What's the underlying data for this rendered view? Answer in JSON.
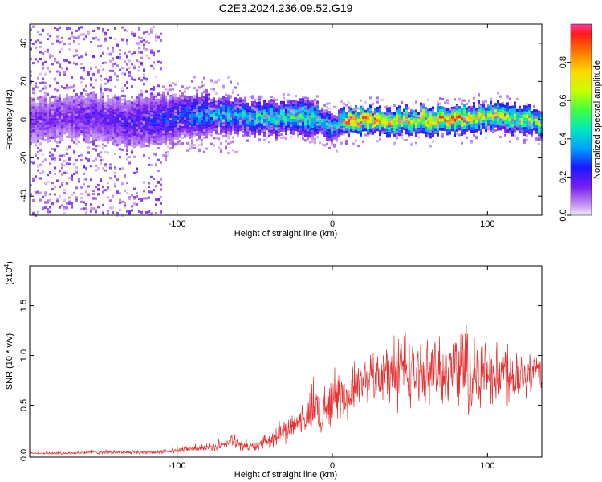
{
  "title": "C2E3.2024.236.09.52.G19",
  "chart_data": [
    {
      "type": "heatmap",
      "xlabel": "Height of straight line (km)",
      "ylabel": "Frequency (Hz)",
      "xlim": [
        -195,
        135
      ],
      "ylim": [
        -50,
        50
      ],
      "xticks": [
        -100,
        0,
        100
      ],
      "xtick_labels": [
        "-100",
        "0",
        "100"
      ],
      "yticks": [
        -40,
        -20,
        0,
        20,
        40
      ],
      "ytick_labels": [
        "-40",
        "-20",
        "0",
        "20",
        "40"
      ],
      "ridge": {
        "description_points_x": [
          -195,
          -160,
          -130,
          -100,
          -80,
          -60,
          -40,
          -20,
          -10,
          -5,
          0,
          5,
          10,
          20,
          40,
          60,
          80,
          100,
          120,
          135
        ],
        "frequency_hz": [
          0,
          2,
          -2,
          2,
          3,
          2,
          1,
          2,
          1,
          -2,
          -4,
          -1,
          0,
          0,
          -1,
          0,
          0,
          2,
          1,
          -2
        ],
        "peak_amplitude": [
          0.15,
          0.18,
          0.22,
          0.3,
          0.4,
          0.45,
          0.5,
          0.55,
          0.5,
          0.45,
          0.4,
          0.55,
          0.95,
          0.95,
          0.75,
          0.8,
          0.9,
          0.7,
          0.65,
          0.6
        ]
      },
      "colorbar": {
        "label": "Normalized spectral amplitude",
        "range": [
          0,
          1
        ],
        "ticks": [
          0.0,
          0.2,
          0.4,
          0.6,
          0.8
        ],
        "tick_labels": [
          "0.0",
          "0.2",
          "0.4",
          "0.6",
          "0.8"
        ]
      }
    },
    {
      "type": "line",
      "xlabel": "Height of straight line (km)",
      "ylabel": "SNR (10 * v/v)",
      "scale_label_base": "(x10",
      "scale_label_exp": "4",
      "scale_label_end": ")",
      "xlim": [
        -195,
        135
      ],
      "ylim": [
        -0.02,
        1.9
      ],
      "xticks": [
        -100,
        0,
        100
      ],
      "xtick_labels": [
        "-100",
        "0",
        "100"
      ],
      "yticks": [
        0.0,
        0.5,
        1.0,
        1.5
      ],
      "ytick_labels": [
        "0.0",
        "0.5",
        "1.0",
        "1.5"
      ],
      "color": "#e83030",
      "series": [
        {
          "name": "SNR",
          "x": [
            -195,
            -170,
            -150,
            -130,
            -110,
            -100,
            -90,
            -80,
            -70,
            -65,
            -60,
            -50,
            -45,
            -40,
            -35,
            -30,
            -25,
            -20,
            -15,
            -12,
            -8,
            -5,
            0,
            5,
            10,
            15,
            20,
            25,
            30,
            35,
            40,
            45,
            50,
            55,
            60,
            65,
            70,
            75,
            80,
            82,
            85,
            90,
            95,
            100,
            105,
            110,
            115,
            120,
            125,
            130,
            135
          ],
          "mean": [
            0.02,
            0.02,
            0.03,
            0.03,
            0.03,
            0.05,
            0.06,
            0.08,
            0.09,
            0.15,
            0.1,
            0.08,
            0.12,
            0.15,
            0.2,
            0.25,
            0.3,
            0.35,
            0.4,
            0.5,
            0.4,
            0.5,
            0.55,
            0.6,
            0.55,
            0.7,
            0.75,
            0.8,
            0.8,
            0.82,
            0.85,
            0.9,
            0.85,
            0.8,
            0.85,
            0.85,
            0.82,
            0.85,
            0.85,
            0.9,
            0.85,
            0.8,
            0.82,
            0.85,
            0.8,
            0.85,
            0.82,
            0.85,
            0.8,
            0.85,
            0.82
          ],
          "spread": [
            0.01,
            0.015,
            0.02,
            0.02,
            0.02,
            0.03,
            0.03,
            0.04,
            0.05,
            0.06,
            0.05,
            0.05,
            0.06,
            0.08,
            0.1,
            0.12,
            0.12,
            0.15,
            0.2,
            0.3,
            0.25,
            0.3,
            0.3,
            0.25,
            0.2,
            0.2,
            0.25,
            0.25,
            0.25,
            0.3,
            0.4,
            0.45,
            0.35,
            0.3,
            0.3,
            0.3,
            0.35,
            0.35,
            0.45,
            0.55,
            0.45,
            0.4,
            0.35,
            0.35,
            0.3,
            0.35,
            0.3,
            0.3,
            0.25,
            0.25,
            0.2
          ]
        }
      ]
    }
  ]
}
